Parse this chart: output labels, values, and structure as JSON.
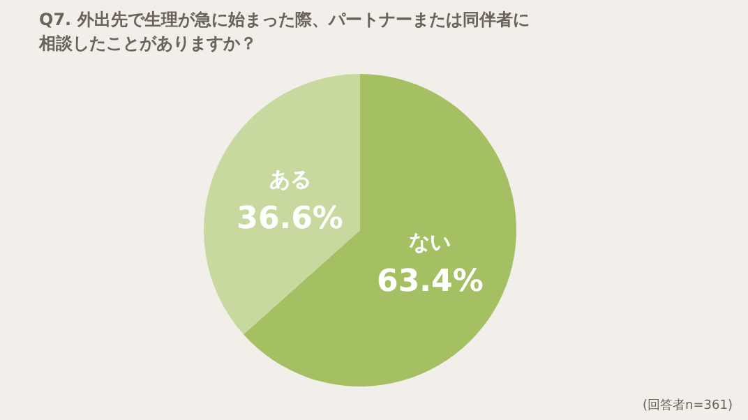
{
  "chart_data": {
    "type": "pie",
    "title": "Q7. 外出先で生理が急に始まった際、パートナーまたは同伴者に相談したことがありますか？",
    "categories": [
      "ない",
      "ある"
    ],
    "values": [
      63.4,
      36.6
    ],
    "value_labels": [
      "63.4%",
      "36.6%"
    ],
    "colors": [
      "#a5bf63",
      "#c8d9a0"
    ],
    "legend": false,
    "annotations": [
      "(回答者n=361)"
    ]
  }
}
